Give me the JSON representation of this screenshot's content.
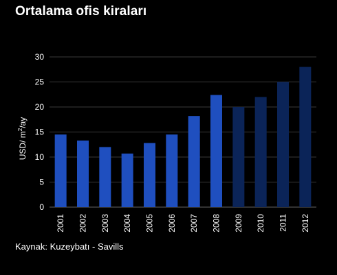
{
  "title": "Ortalama ofis kiraları",
  "source": "Kaynak: Kuzeybatı - Savills",
  "chart_data": {
    "type": "bar",
    "categories": [
      "2001",
      "2002",
      "2003",
      "2004",
      "2005",
      "2006",
      "2007",
      "2008",
      "2009",
      "2010",
      "2011",
      "2012"
    ],
    "values": [
      14.5,
      13.3,
      12.0,
      10.7,
      12.8,
      14.5,
      18.2,
      22.4,
      20.0,
      22.0,
      25.0,
      28.0
    ],
    "bar_colors": [
      "#1f4fbf",
      "#1f4fbf",
      "#1f4fbf",
      "#1f4fbf",
      "#1f4fbf",
      "#1f4fbf",
      "#1f4fbf",
      "#1f4fbf",
      "#0b2458",
      "#0b2458",
      "#0b2458",
      "#0b2458"
    ],
    "title": "Ortalama ofis kiraları",
    "xlabel": "",
    "ylabel": "USD/ m²/ay",
    "ylabel_parts": {
      "base": "USD/ m",
      "sup": "2",
      "suffix": "/ay"
    },
    "ylim": [
      0,
      30
    ],
    "yticks": [
      "0",
      "5",
      "10",
      "15",
      "20",
      "25",
      "30"
    ],
    "grid": true,
    "gridline_color": "#3a3a3a"
  }
}
